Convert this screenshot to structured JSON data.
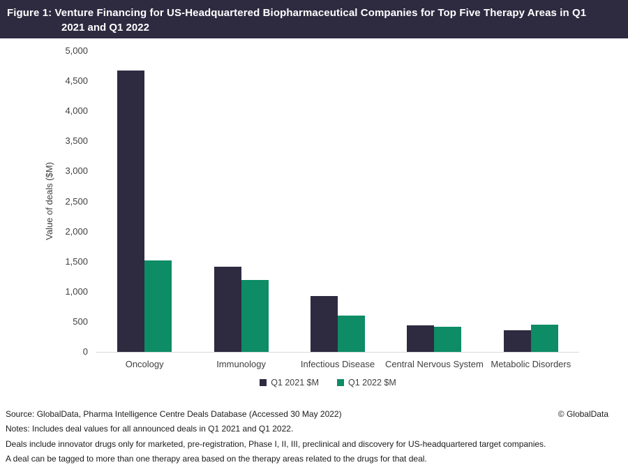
{
  "header": {
    "title_line1": "Figure 1: Venture Financing for US-Headquartered Biopharmaceutical Companies for Top Five Therapy Areas in Q1",
    "title_line2": "2021 and Q1 2022"
  },
  "chart_data": {
    "type": "bar",
    "title": "Venture Financing for US-Headquartered Biopharmaceutical Companies for Top Five Therapy Areas in Q1 2021 and Q1 2022",
    "categories": [
      "Oncology",
      "Immunology",
      "Infectious Disease",
      "Central Nervous System",
      "Metabolic Disorders"
    ],
    "series": [
      {
        "name": "Q1 2021 $M",
        "color": "#2e2a40",
        "values": [
          4670,
          1420,
          930,
          440,
          355
        ]
      },
      {
        "name": "Q1 2022 $M",
        "color": "#0d8c66",
        "values": [
          1520,
          1200,
          600,
          415,
          450
        ]
      }
    ],
    "xlabel": "",
    "ylabel": "Value of deals ($M)",
    "ylim": [
      0,
      5000
    ],
    "ytick_step": 500,
    "ytick_labels": [
      "0",
      "500",
      "1,000",
      "1,500",
      "2,000",
      "2,500",
      "3,000",
      "3,500",
      "4,000",
      "4,500",
      "5,000"
    ],
    "grid": false,
    "legend_position": "bottom"
  },
  "colors": {
    "header_bg": "#2e2a40",
    "header_text": "#ffffff",
    "series_q1_2021": "#2e2a40",
    "series_q1_2022": "#0d8c66",
    "axis_line": "#d9d9d9",
    "chart_text": "#404040",
    "footer_text": "#1a1a1a",
    "page_bg": "#ffffff"
  },
  "footer": {
    "source": "Source: GlobalData, Pharma Intelligence Centre Deals Database (Accessed 30 May 2022)",
    "copyright": "© GlobalData",
    "notes": [
      "Notes: Includes deal values for all announced deals in Q1 2021 and Q1 2022.",
      "Deals include innovator drugs only for marketed, pre-registration, Phase I, II, III, preclinical and discovery for US-headquartered target companies.",
      "A deal can be tagged to more than one therapy area based on the therapy areas related to the drugs for that deal."
    ]
  }
}
